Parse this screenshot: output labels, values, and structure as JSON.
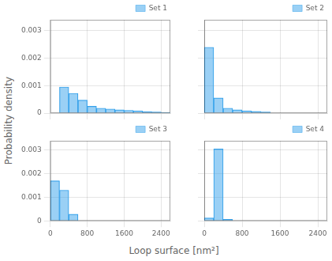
{
  "xlabel": "Loop surface [nm²]",
  "ylabel": "Probability density",
  "chart_data": [
    {
      "type": "histogram",
      "bins": [
        0,
        200,
        400,
        600,
        800,
        1000,
        1200,
        1400,
        1600,
        1800,
        2000,
        2200,
        2400,
        2600
      ],
      "series": [
        {
          "name": "Set 1",
          "values": [
            0.0,
            0.00095,
            0.00072,
            0.00047,
            0.00025,
            0.00018,
            0.00015,
            0.00012,
            0.0001,
            8e-05,
            5e-05,
            4e-05,
            3e-05
          ]
        }
      ],
      "xlim": [
        0,
        2600
      ],
      "ylim": [
        0,
        0.0034
      ],
      "xticks": [
        0,
        800,
        1600,
        2400
      ],
      "yticks": [
        0,
        0.001,
        0.002,
        0.003
      ],
      "grid": true,
      "legend": "upper right",
      "tick_labels": "y"
    },
    {
      "type": "histogram",
      "bins": [
        0,
        200,
        400,
        600,
        800,
        1000,
        1200,
        1400,
        1600,
        1800,
        2000,
        2200,
        2400,
        2600
      ],
      "series": [
        {
          "name": "Set 2",
          "values": [
            0.0024,
            0.00055,
            0.00018,
            0.00012,
            8e-05,
            6e-05,
            4e-05,
            0.0,
            0.0,
            0.0,
            0.0,
            0.0,
            0.0
          ]
        }
      ],
      "xlim": [
        0,
        2600
      ],
      "ylim": [
        0,
        0.0034
      ],
      "xticks": [
        0,
        800,
        1600,
        2400
      ],
      "yticks": [
        0,
        0.001,
        0.002,
        0.003
      ],
      "grid": true,
      "legend": "upper right",
      "tick_labels": false
    },
    {
      "type": "histogram",
      "bins": [
        0,
        200,
        400,
        600,
        800,
        1000,
        1200,
        1400,
        1600,
        1800,
        2000,
        2200,
        2400,
        2600
      ],
      "series": [
        {
          "name": "Set 3",
          "values": [
            0.0017,
            0.0013,
            0.00028,
            0.0,
            0.0,
            0.0,
            0.0,
            0.0,
            0.0,
            0.0,
            0.0,
            0.0,
            0.0
          ]
        }
      ],
      "xlim": [
        0,
        2600
      ],
      "ylim": [
        0,
        0.0034
      ],
      "xticks": [
        0,
        800,
        1600,
        2400
      ],
      "yticks": [
        0,
        0.001,
        0.002,
        0.003
      ],
      "grid": true,
      "legend": "upper right",
      "tick_labels": true
    },
    {
      "type": "histogram",
      "bins": [
        0,
        200,
        400,
        600,
        800,
        1000,
        1200,
        1400,
        1600,
        1800,
        2000,
        2200,
        2400,
        2600
      ],
      "series": [
        {
          "name": "Set 4",
          "values": [
            0.00012,
            0.00305,
            6e-05,
            0.0,
            0.0,
            0.0,
            0.0,
            0.0,
            0.0,
            0.0,
            0.0,
            0.0,
            0.0
          ]
        }
      ],
      "xlim": [
        0,
        2600
      ],
      "ylim": [
        0,
        0.0034
      ],
      "xticks": [
        0,
        800,
        1600,
        2400
      ],
      "yticks": [
        0,
        0.001,
        0.002,
        0.003
      ],
      "grid": true,
      "legend": "upper right",
      "tick_labels": "x"
    }
  ]
}
